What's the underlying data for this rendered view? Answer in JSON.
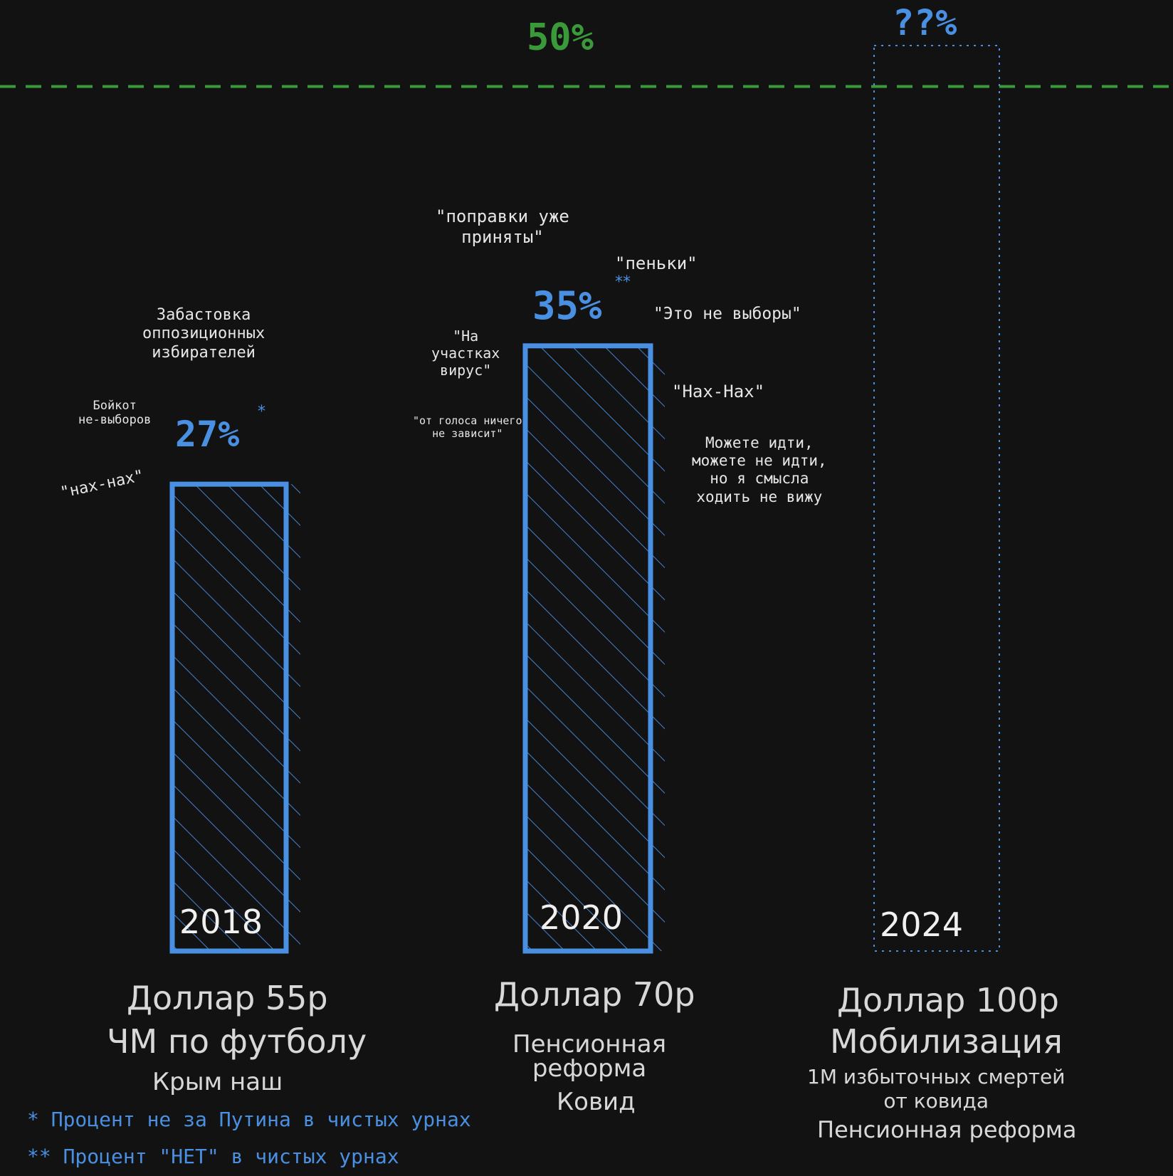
{
  "chart_data": {
    "type": "bar",
    "categories": [
      "2018",
      "2020",
      "2024"
    ],
    "values": [
      27,
      35,
      null
    ],
    "value_labels": [
      "27%",
      "35%",
      "??%"
    ],
    "value_markers": [
      "*",
      "**",
      ""
    ],
    "reference_line": {
      "value": 50,
      "label": "50%"
    },
    "ylim": [
      0,
      55
    ],
    "grid": false,
    "legend": "none"
  },
  "annotations": {
    "bar2018": {
      "strike": "Забастовка\nоппозиционных\nизбирателей",
      "boycott": "Бойкот\nне-выборов",
      "naxnax": "\"нах-нах\""
    },
    "bar2020": {
      "amendments": "\"поправки уже\nприняты\"",
      "penki": "\"пеньки\"",
      "not_elections": "\"Это не выборы\"",
      "virus": "\"На\nучастках\nвирус\"",
      "vote_nothing": "\"от голоса ничего\nне зависит\"",
      "naxnax": "\"Нах-Нах\"",
      "can_go": "Можете идти,\nможете не идти,\nно я смысла\nходить не вижу"
    }
  },
  "captions": {
    "c2018": {
      "dollar": "Доллар 55р",
      "event1": "ЧМ по футболу",
      "event2": "Крым наш"
    },
    "c2020": {
      "dollar": "Доллар 70р",
      "event1": "Пенсионная\nреформа",
      "event2": "Ковид"
    },
    "c2024": {
      "dollar": "Доллар 100р",
      "event1": "Мобилизация",
      "event2": "1М избыточных смертей\nот ковида",
      "event3": "Пенсионная реформа"
    }
  },
  "footnotes": {
    "one": "* Процент не за Путина в чистых урнах",
    "two": "** Процент \"НЕТ\" в чистых урнах"
  },
  "colors": {
    "bar": "#4a90e2",
    "reference": "#3a9a3a",
    "background": "#121212",
    "text": "#e6e6e6"
  }
}
